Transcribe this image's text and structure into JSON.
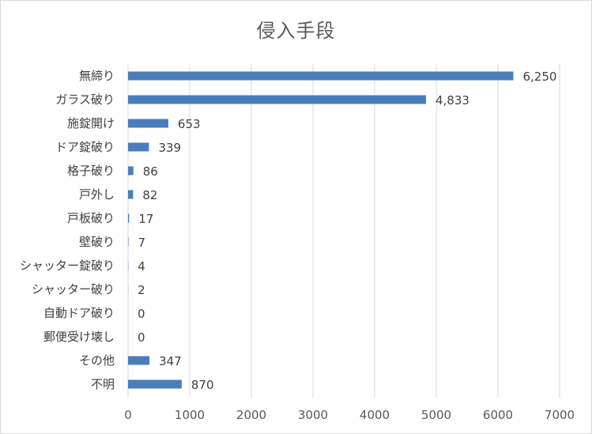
{
  "chart_data": {
    "type": "bar",
    "orientation": "horizontal",
    "title": "侵入手段",
    "categories": [
      "無締り",
      "ガラス破り",
      "施錠開け",
      "ドア錠破り",
      "格子破り",
      "戸外し",
      "戸板破り",
      "壁破り",
      "シャッター錠破り",
      "シャッター破り",
      "自動ドア破り",
      "郵便受け壊し",
      "その他",
      "不明"
    ],
    "values": [
      6250,
      4833,
      653,
      339,
      86,
      82,
      17,
      7,
      4,
      2,
      0,
      0,
      347,
      870
    ],
    "value_labels": [
      "6,250",
      "4,833",
      "653",
      "339",
      "86",
      "82",
      "17",
      "7",
      "4",
      "2",
      "0",
      "0",
      "347",
      "870"
    ],
    "xlim": [
      0,
      7000
    ],
    "xticks": [
      0,
      1000,
      2000,
      3000,
      4000,
      5000,
      6000,
      7000
    ],
    "xlabel": "",
    "ylabel": "",
    "grid": true,
    "legend": false,
    "colors": {
      "bar": "#4a7ebb",
      "grid": "#d9d9d9",
      "text": "#404040",
      "title": "#595959"
    }
  }
}
